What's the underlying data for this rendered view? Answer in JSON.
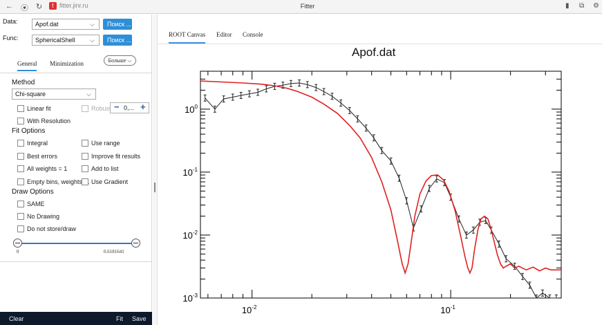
{
  "browser": {
    "back_glyph": "←",
    "shield_glyph": "⦿",
    "reload_glyph": "↻",
    "warn_glyph": "!",
    "url": "fitter.jinr.ru",
    "window_title": "Fitter",
    "right_icons": [
      "▮",
      "⧉",
      "⚙"
    ]
  },
  "left": {
    "data_label": "Data:",
    "data_value": "Apof.dat",
    "func_label": "Func:",
    "func_value": "SphericalShell",
    "search_button": "Поиск ...",
    "tab_general": "General",
    "tab_minimization": "Minimization",
    "more_button": "Больше",
    "method_title": "Method",
    "method_value": "Chi-square",
    "linear_fit": "Linear fit",
    "robust": "Robust",
    "robust_value": "0,...",
    "with_resolution": "With Resolution",
    "fit_options_title": "Fit Options",
    "integral": "Integral",
    "use_range": "Use range",
    "best_errors": "Best errors",
    "improve_fit": "Improve fit results",
    "all_weights": "All weights = 1",
    "add_to_list": "Add to list",
    "empty_bins": "Empty bins, weights=1",
    "use_gradient": "Use Gradient",
    "draw_options_title": "Draw Options",
    "same": "SAME",
    "no_drawing": "No Drawing",
    "do_not_store": "Do not store/draw",
    "slider_min": "0",
    "slider_max": "0.6181641",
    "clear": "Clear",
    "fit": "Fit",
    "save": "Save"
  },
  "right": {
    "tabs": [
      "ROOT Canvas",
      "Editor",
      "Console"
    ],
    "plot_title": "Apof.dat"
  },
  "colors": {
    "accent": "#2e8fd9",
    "fit_curve": "#e02020",
    "data_curve": "#222222",
    "bottom_bar": "#0e1a2c"
  },
  "chart_data": {
    "type": "line",
    "title": "Apof.dat",
    "x_scale": "log",
    "y_scale": "log",
    "xlim": [
      0.0055,
      0.36
    ],
    "ylim": [
      0.001,
      4
    ],
    "x_tick_labels": [
      "10^-2",
      "10^-1"
    ],
    "y_tick_labels": [
      "10^0",
      "10^-1",
      "10^-2",
      "10^-3"
    ],
    "series": [
      {
        "kind": "data",
        "color": "#222222",
        "x": [
          0.0058,
          0.0065,
          0.0072,
          0.008,
          0.0088,
          0.0097,
          0.0107,
          0.0118,
          0.013,
          0.0143,
          0.0157,
          0.0173,
          0.019,
          0.021,
          0.023,
          0.0253,
          0.028,
          0.031,
          0.034,
          0.0375,
          0.041,
          0.045,
          0.05,
          0.055,
          0.06,
          0.065,
          0.071,
          0.078,
          0.085,
          0.093,
          0.1,
          0.11,
          0.12,
          0.13,
          0.14,
          0.15,
          0.16,
          0.175,
          0.19,
          0.21,
          0.23,
          0.25,
          0.27,
          0.29,
          0.315,
          0.34
        ],
        "y": [
          1.5,
          1.0,
          1.45,
          1.55,
          1.65,
          1.75,
          1.85,
          2.1,
          2.3,
          2.4,
          2.55,
          2.6,
          2.45,
          2.2,
          1.9,
          1.6,
          1.25,
          0.95,
          0.7,
          0.5,
          0.35,
          0.22,
          0.15,
          0.08,
          0.035,
          0.013,
          0.026,
          0.055,
          0.078,
          0.068,
          0.04,
          0.018,
          0.01,
          0.012,
          0.016,
          0.017,
          0.012,
          0.0072,
          0.0042,
          0.0032,
          0.0022,
          0.0016,
          0.001,
          0.0012,
          0.0008,
          0.001
        ]
      },
      {
        "kind": "fit",
        "color": "#e02020",
        "x": [
          0.0055,
          0.007,
          0.009,
          0.011,
          0.013,
          0.015,
          0.017,
          0.02,
          0.023,
          0.027,
          0.031,
          0.035,
          0.04,
          0.045,
          0.05,
          0.054,
          0.057,
          0.059,
          0.061,
          0.063,
          0.066,
          0.07,
          0.075,
          0.08,
          0.086,
          0.092,
          0.098,
          0.105,
          0.112,
          0.118,
          0.122,
          0.125,
          0.128,
          0.132,
          0.137,
          0.142,
          0.148,
          0.154,
          0.16,
          0.166,
          0.172,
          0.178,
          0.184,
          0.19,
          0.2,
          0.21,
          0.22,
          0.24,
          0.26,
          0.28,
          0.3,
          0.32,
          0.34,
          0.36
        ],
        "y": [
          2.8,
          2.7,
          2.6,
          2.5,
          2.35,
          2.15,
          1.9,
          1.55,
          1.2,
          0.85,
          0.55,
          0.35,
          0.17,
          0.07,
          0.025,
          0.008,
          0.0035,
          0.0025,
          0.0035,
          0.007,
          0.02,
          0.045,
          0.072,
          0.088,
          0.09,
          0.075,
          0.05,
          0.025,
          0.01,
          0.0045,
          0.003,
          0.0025,
          0.003,
          0.006,
          0.012,
          0.018,
          0.02,
          0.018,
          0.012,
          0.0075,
          0.0048,
          0.0035,
          0.003,
          0.0032,
          0.0035,
          0.003,
          0.0032,
          0.0028,
          0.0031,
          0.0027,
          0.003,
          0.0028,
          0.0028,
          0.0028
        ]
      }
    ]
  }
}
